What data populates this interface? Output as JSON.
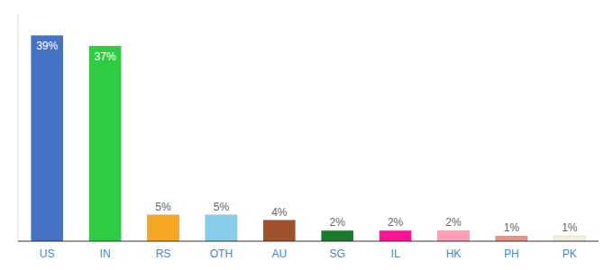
{
  "chart_data": {
    "type": "bar",
    "categories": [
      "US",
      "IN",
      "RS",
      "OTH",
      "AU",
      "SG",
      "IL",
      "HK",
      "PH",
      "PK"
    ],
    "values": [
      39,
      37,
      5,
      5,
      4,
      2,
      2,
      2,
      1,
      1
    ],
    "value_labels": [
      "39%",
      "37%",
      "5%",
      "5%",
      "4%",
      "2%",
      "2%",
      "2%",
      "1%",
      "1%"
    ],
    "colors": [
      "#4472c4",
      "#2ecc40",
      "#f5a623",
      "#87ceeb",
      "#a0522d",
      "#1a7a2a",
      "#ff1493",
      "#ff9eb5",
      "#e8908a",
      "#f5f0dc"
    ],
    "ylim": [
      0,
      43
    ],
    "grid": false,
    "data_labels": true,
    "tick_labels": "x"
  }
}
